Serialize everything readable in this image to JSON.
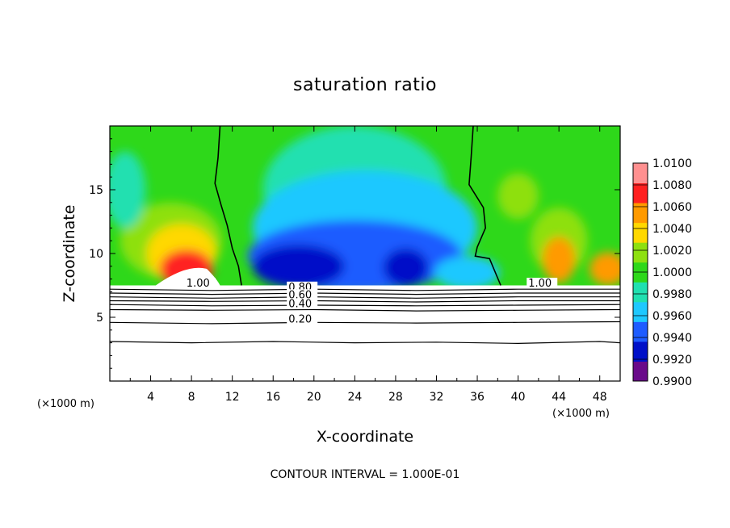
{
  "chart_data": {
    "type": "heatmap",
    "title": "saturation ratio",
    "xlabel": "X-coordinate",
    "ylabel": "Z-coordinate",
    "x_unit": "(×1000 m)",
    "footer": "CONTOUR INTERVAL = 1.000E-01",
    "xlim": [
      0,
      50
    ],
    "ylim": [
      0,
      20
    ],
    "x_ticks": [
      4,
      8,
      12,
      16,
      20,
      24,
      28,
      32,
      36,
      40,
      44,
      48
    ],
    "y_ticks": [
      5,
      10,
      15
    ],
    "x_tick_labels": [
      "4",
      "8",
      "12",
      "16",
      "20",
      "24",
      "28",
      "32",
      "36",
      "40",
      "44",
      "48"
    ],
    "y_tick_labels": [
      "5",
      "10",
      "15"
    ],
    "colorbar": {
      "levels": [
        0.99,
        0.992,
        0.994,
        0.996,
        0.998,
        1.0,
        1.002,
        1.004,
        1.006,
        1.008,
        1.01
      ],
      "labels": [
        "0.9900",
        "0.9920",
        "0.9940",
        "0.9960",
        "0.9980",
        "1.0000",
        "1.0020",
        "1.0040",
        "1.0060",
        "1.0080",
        "1.0100"
      ],
      "colors": [
        "#6a0a8a",
        "#0010c8",
        "#1e5cff",
        "#1ec8ff",
        "#20e0b0",
        "#2ed81a",
        "#8ee010",
        "#ffd800",
        "#ff9a00",
        "#ff2020",
        "#ff9090"
      ]
    },
    "cloud_base_z": 7.5,
    "field_regions": [
      {
        "name": "upper-left",
        "x": [
          0,
          10
        ],
        "z": [
          7.5,
          20
        ],
        "value": 1.0
      },
      {
        "name": "left-peak",
        "x": [
          5,
          10
        ],
        "z": [
          7.5,
          12
        ],
        "value": 1.006
      },
      {
        "name": "central-trough",
        "x": [
          13,
          38
        ],
        "z": [
          7.5,
          16
        ],
        "value": 0.994
      },
      {
        "name": "deep-trough",
        "x": [
          14,
          23
        ],
        "z": [
          7.6,
          11
        ],
        "value": 0.992
      },
      {
        "name": "right-peak",
        "x": [
          42,
          46
        ],
        "z": [
          7.5,
          12
        ],
        "value": 1.004
      },
      {
        "name": "far-right-peak",
        "x": [
          47,
          50
        ],
        "z": [
          7.5,
          10
        ],
        "value": 1.006
      }
    ],
    "contour_lines": [
      {
        "label": "1.00",
        "x": [
          10.8,
          10.6,
          10.3,
          10.9,
          11.5,
          12.0,
          12.6,
          12.9
        ],
        "z": [
          20,
          17.5,
          15.5,
          13.8,
          12.2,
          10.4,
          9.0,
          7.5
        ]
      },
      {
        "label": "1.00",
        "x": [
          35.6,
          35.4,
          35.2,
          36.6,
          36.8,
          36.0,
          35.8,
          37.2,
          38.3
        ],
        "z": [
          20,
          17.6,
          15.4,
          13.6,
          12.0,
          10.5,
          9.8,
          9.6,
          7.5
        ]
      },
      {
        "label": "0.80",
        "x": [
          0,
          10,
          20,
          30,
          40,
          50
        ],
        "z": [
          7.2,
          7.1,
          7.2,
          7.1,
          7.2,
          7.2
        ]
      },
      {
        "label": "0.60",
        "x": [
          0,
          10,
          20,
          30,
          40,
          50
        ],
        "z": [
          6.9,
          6.8,
          6.9,
          6.8,
          6.9,
          6.9
        ]
      },
      {
        "label": "",
        "x": [
          0,
          10,
          20,
          30,
          40,
          50
        ],
        "z": [
          6.6,
          6.5,
          6.6,
          6.5,
          6.6,
          6.6
        ]
      },
      {
        "label": "",
        "x": [
          0,
          10,
          20,
          30,
          40,
          50
        ],
        "z": [
          6.3,
          6.25,
          6.3,
          6.2,
          6.3,
          6.3
        ]
      },
      {
        "label": "0.40",
        "x": [
          0,
          10,
          20,
          30,
          40,
          50
        ],
        "z": [
          6.0,
          5.9,
          5.95,
          5.9,
          5.95,
          6.0
        ]
      },
      {
        "label": "",
        "x": [
          0,
          10,
          20,
          30,
          40,
          50
        ],
        "z": [
          5.6,
          5.55,
          5.6,
          5.5,
          5.55,
          5.6
        ]
      },
      {
        "label": "0.20",
        "x": [
          0,
          10,
          20,
          30,
          40,
          50
        ],
        "z": [
          4.6,
          4.5,
          4.6,
          4.55,
          4.6,
          4.65
        ]
      },
      {
        "label": "",
        "x": [
          0,
          8,
          16,
          24,
          32,
          40,
          48,
          50
        ],
        "z": [
          3.1,
          3.0,
          3.1,
          3.0,
          3.05,
          2.95,
          3.1,
          3.0
        ]
      }
    ],
    "contour_label_positions": [
      {
        "text": "1.00",
        "x": 7.5,
        "z": 7.4
      },
      {
        "text": "1.00",
        "x": 41.0,
        "z": 7.4
      },
      {
        "text": "0.80",
        "x": 17.5,
        "z": 7.1
      },
      {
        "text": "0.60",
        "x": 17.5,
        "z": 6.5
      },
      {
        "text": "0.40",
        "x": 17.5,
        "z": 5.8
      },
      {
        "text": "0.20",
        "x": 17.5,
        "z": 4.6
      }
    ],
    "grid": false,
    "legend": "right colorbar"
  }
}
